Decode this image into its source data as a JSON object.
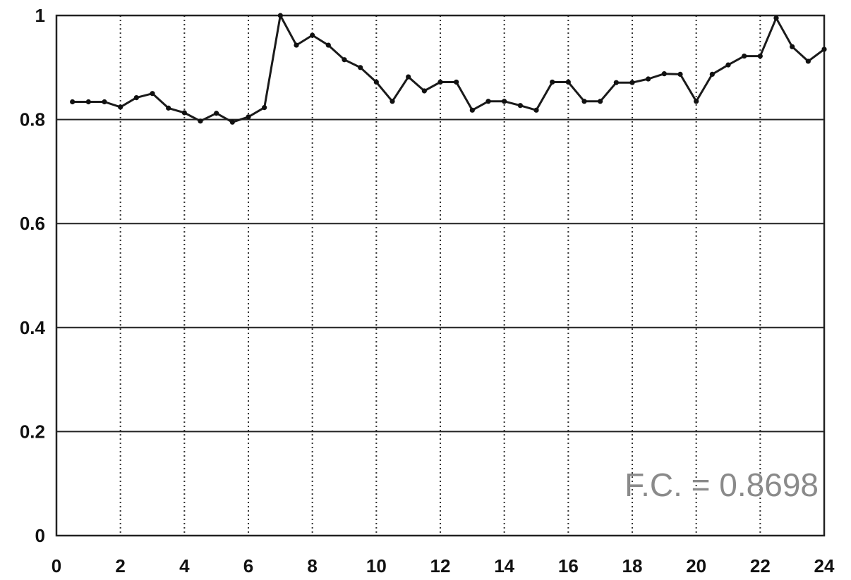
{
  "chart_data": {
    "type": "line",
    "title": "",
    "xlabel": "",
    "ylabel": "",
    "xlim": [
      0,
      24
    ],
    "ylim": [
      0,
      1
    ],
    "xticks": [
      "0",
      "2",
      "4",
      "6",
      "8",
      "10",
      "12",
      "14",
      "16",
      "18",
      "20",
      "22",
      "24"
    ],
    "yticks": [
      "0",
      "0.2",
      "0.4",
      "0.6",
      "0.8",
      "1"
    ],
    "grid": {
      "x": "dotted-vertical",
      "y": "solid-horizontal"
    },
    "annotation": "F.C. = 0.8698",
    "series": [
      {
        "x": [
          0.5,
          1,
          1.5,
          2,
          2.5,
          3,
          3.5,
          4,
          4.5,
          5,
          5.5,
          6,
          6.5,
          7,
          7.5,
          8,
          8.5,
          9,
          9.5,
          10,
          10.5,
          11,
          11.5,
          12,
          12.5,
          13,
          13.5,
          14,
          14.5,
          15,
          15.5,
          16,
          16.5,
          17,
          17.5,
          18,
          18.5,
          19,
          19.5,
          20,
          20.5,
          21,
          21.5,
          22,
          22.5,
          23,
          23.5,
          24
        ],
        "values": [
          0.834,
          0.834,
          0.834,
          0.824,
          0.842,
          0.85,
          0.822,
          0.813,
          0.797,
          0.812,
          0.795,
          0.805,
          0.823,
          1.0,
          0.943,
          0.962,
          0.943,
          0.915,
          0.9,
          0.872,
          0.835,
          0.882,
          0.855,
          0.872,
          0.872,
          0.818,
          0.835,
          0.835,
          0.827,
          0.818,
          0.872,
          0.872,
          0.835,
          0.835,
          0.871,
          0.871,
          0.878,
          0.888,
          0.887,
          0.835,
          0.887,
          0.905,
          0.922,
          0.922,
          0.995,
          0.94,
          0.912,
          0.935
        ]
      }
    ]
  }
}
